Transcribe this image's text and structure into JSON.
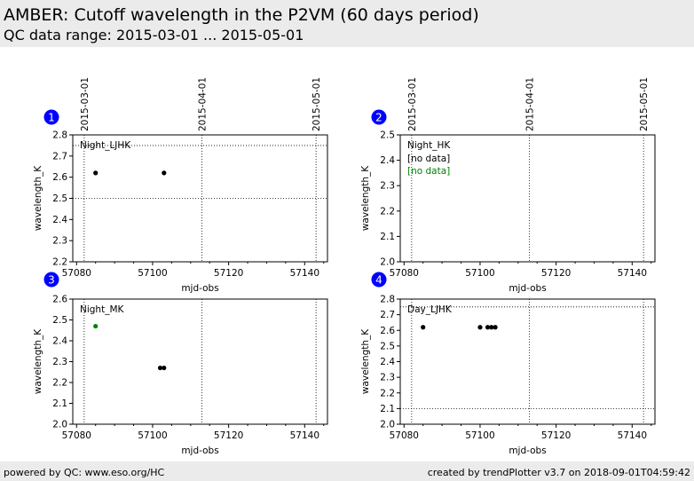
{
  "header": {
    "title": "AMBER: Cutoff wavelength in the P2VM (60 days period)",
    "subtitle": "QC data range: 2015-03-01 ... 2015-05-01"
  },
  "footer": {
    "left": "powered by QC: www.eso.org/HC",
    "right": "created by trendPlotter v3.7 on 2018-09-01T04:59:42"
  },
  "date_ticks": [
    {
      "label": "2015-03-01",
      "mjd": 57082
    },
    {
      "label": "2015-04-01",
      "mjd": 57113
    },
    {
      "label": "2015-05-01",
      "mjd": 57143
    }
  ],
  "colors": {
    "data": "#000000",
    "highlight": "#008000",
    "badge": "#0000ff",
    "header_bg": "#ebebeb"
  },
  "chart_data": [
    {
      "type": "scatter",
      "panel": "1",
      "label": "Night_LJHK",
      "xlabel": "mjd-obs",
      "ylabel": "wavelength_K",
      "xlim": [
        57079,
        57146
      ],
      "ylim": [
        2.2,
        2.8
      ],
      "xticks": [
        57080,
        57100,
        57120,
        57140
      ],
      "yticks": [
        2.2,
        2.3,
        2.4,
        2.5,
        2.6,
        2.7,
        2.8
      ],
      "ref_lines": [
        2.5,
        2.75
      ],
      "notes": [],
      "points": [
        {
          "x": 57085,
          "y": 2.62,
          "color": "#000000"
        },
        {
          "x": 57103,
          "y": 2.62,
          "color": "#000000"
        }
      ]
    },
    {
      "type": "scatter",
      "panel": "2",
      "label": "Night_HK",
      "xlabel": "mjd-obs",
      "ylabel": "wavelength_K",
      "xlim": [
        57079,
        57146
      ],
      "ylim": [
        2.0,
        2.5
      ],
      "xticks": [
        57080,
        57100,
        57120,
        57140
      ],
      "yticks": [
        2.0,
        2.1,
        2.2,
        2.3,
        2.4,
        2.5
      ],
      "ref_lines": [],
      "notes": [
        {
          "text": "[no data]",
          "color": "#000000"
        },
        {
          "text": "[no data]",
          "color": "#008000"
        }
      ],
      "points": []
    },
    {
      "type": "scatter",
      "panel": "3",
      "label": "Night_MK",
      "xlabel": "mjd-obs",
      "ylabel": "wavelength_K",
      "xlim": [
        57079,
        57146
      ],
      "ylim": [
        2.0,
        2.6
      ],
      "xticks": [
        57080,
        57100,
        57120,
        57140
      ],
      "yticks": [
        2.0,
        2.1,
        2.2,
        2.3,
        2.4,
        2.5,
        2.6
      ],
      "ref_lines": [],
      "notes": [],
      "points": [
        {
          "x": 57085,
          "y": 2.47,
          "color": "#008000"
        },
        {
          "x": 57102,
          "y": 2.27,
          "color": "#000000"
        },
        {
          "x": 57103,
          "y": 2.27,
          "color": "#000000"
        }
      ]
    },
    {
      "type": "scatter",
      "panel": "4",
      "label": "Day_LJHK",
      "xlabel": "mjd-obs",
      "ylabel": "wavelength_K",
      "xlim": [
        57079,
        57146
      ],
      "ylim": [
        2.0,
        2.8
      ],
      "xticks": [
        57080,
        57100,
        57120,
        57140
      ],
      "yticks": [
        2.0,
        2.1,
        2.2,
        2.3,
        2.4,
        2.5,
        2.6,
        2.7,
        2.8
      ],
      "ref_lines": [
        2.1,
        2.75
      ],
      "notes": [],
      "points": [
        {
          "x": 57085,
          "y": 2.62,
          "color": "#000000"
        },
        {
          "x": 57100,
          "y": 2.62,
          "color": "#000000"
        },
        {
          "x": 57102,
          "y": 2.62,
          "color": "#000000"
        },
        {
          "x": 57103,
          "y": 2.62,
          "color": "#000000"
        },
        {
          "x": 57104,
          "y": 2.62,
          "color": "#000000"
        }
      ]
    }
  ]
}
